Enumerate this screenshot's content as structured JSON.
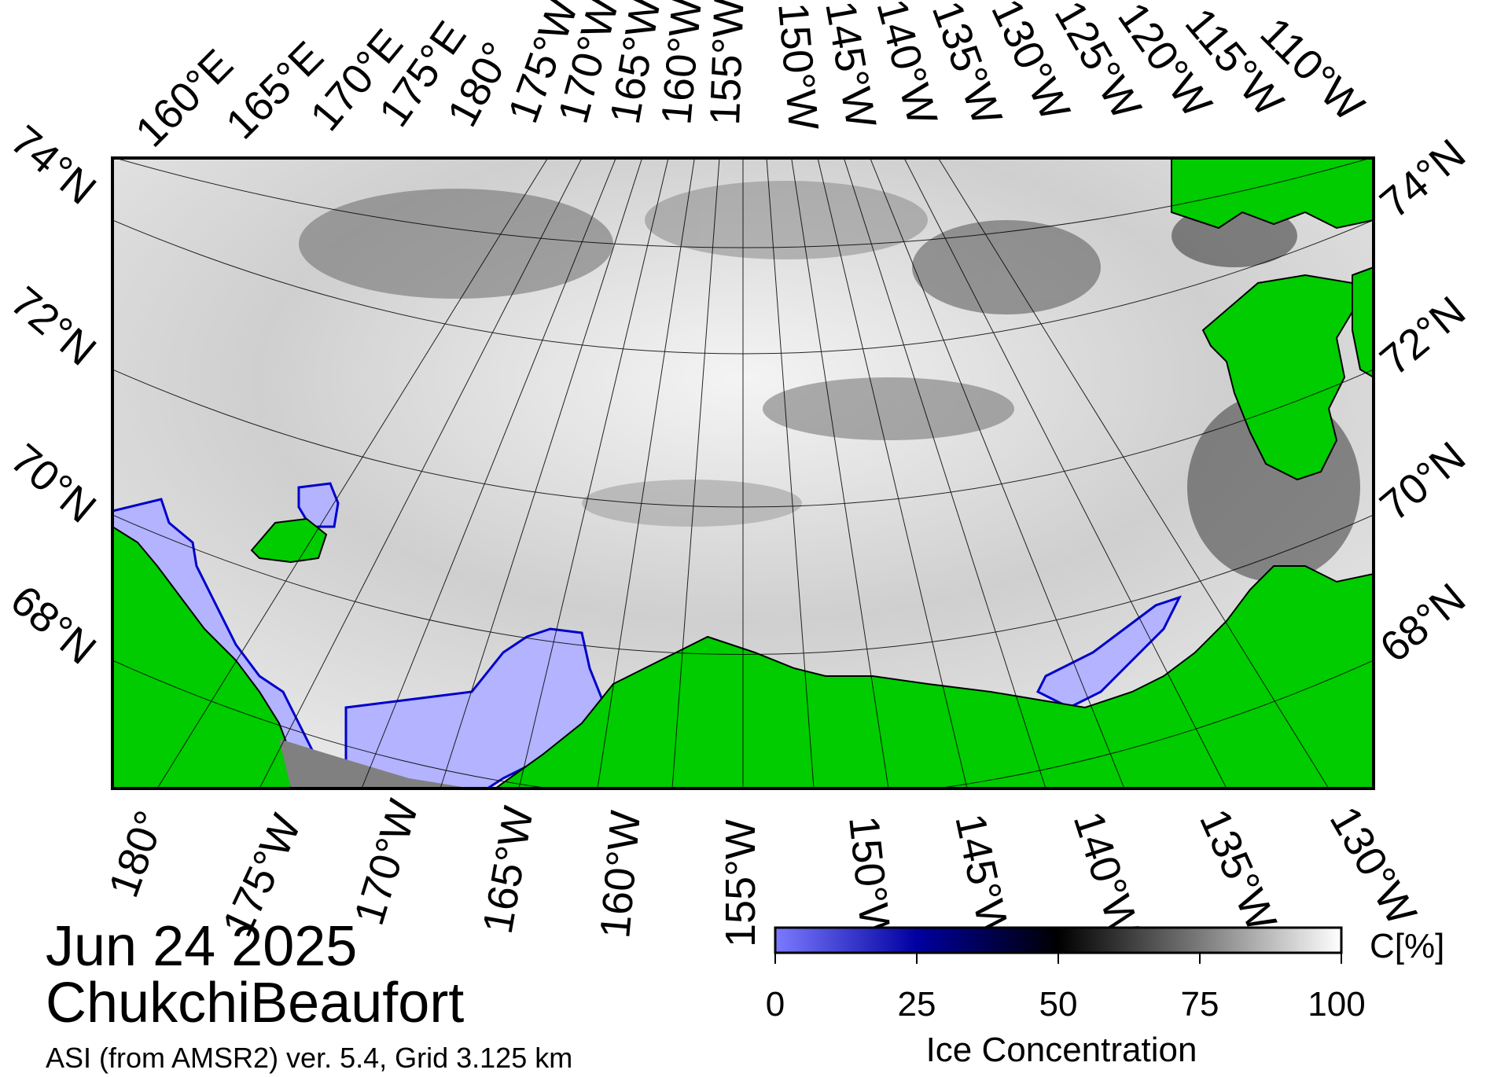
{
  "map": {
    "date": "Jun 24 2025",
    "region": "ChukchiBeaufort",
    "product": "ASI (from AMSR2) ver. 5.4,  Grid 3.125 km",
    "colors": {
      "land": "#00cc00",
      "low_ice": "#b3b3ff",
      "coast_mask": "#808080",
      "frame": "#000000"
    },
    "top_longitude_labels": [
      "160°E",
      "165°E",
      "170°E",
      "175°E",
      "180°",
      "175°W",
      "170°W",
      "165°W",
      "160°W",
      "155°W",
      "150°W",
      "145°W",
      "140°W",
      "135°W",
      "130°W",
      "125°W",
      "120°W",
      "115°W",
      "110°W"
    ],
    "bottom_longitude_labels": [
      "180°",
      "175°W",
      "170°W",
      "165°W",
      "160°W",
      "155°W",
      "150°W",
      "145°W",
      "140°W",
      "135°W",
      "130°W"
    ],
    "left_latitude_labels": [
      "74°N",
      "72°N",
      "70°N",
      "68°N"
    ],
    "right_latitude_labels": [
      "74°N",
      "72°N",
      "70°N",
      "68°N"
    ]
  },
  "legend": {
    "title": "Ice Concentration",
    "unit": "C[%]",
    "ticks": [
      "0",
      "25",
      "50",
      "75",
      "100"
    ],
    "gradient_stops": [
      "#7b7bff",
      "#0000a0",
      "#000040",
      "#000000",
      "#7a7a7a",
      "#ffffff"
    ]
  }
}
